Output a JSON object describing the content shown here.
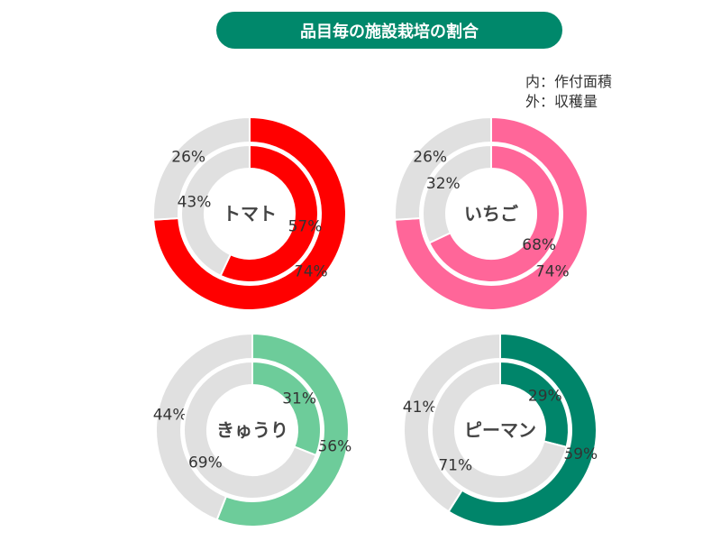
{
  "chart_data": {
    "type": "pie",
    "title": "品目毎の施設栽培の割合",
    "legend": {
      "inner": "内：作付面積",
      "outer": "外：収穫量"
    },
    "rest_color": "#e0e0e0",
    "charts": [
      {
        "name": "トマト",
        "color": "#ff0000",
        "inner": [
          57,
          43
        ],
        "outer": [
          74,
          26
        ]
      },
      {
        "name": "いちご",
        "color": "#ff6699",
        "inner": [
          68,
          32
        ],
        "outer": [
          74,
          26
        ]
      },
      {
        "name": "きゅうり",
        "color": "#6dcc9a",
        "inner": [
          31,
          69
        ],
        "outer": [
          56,
          44
        ]
      },
      {
        "name": "ピーマン",
        "color": "#00856a",
        "inner": [
          29,
          71
        ],
        "outer": [
          59,
          41
        ]
      }
    ]
  }
}
